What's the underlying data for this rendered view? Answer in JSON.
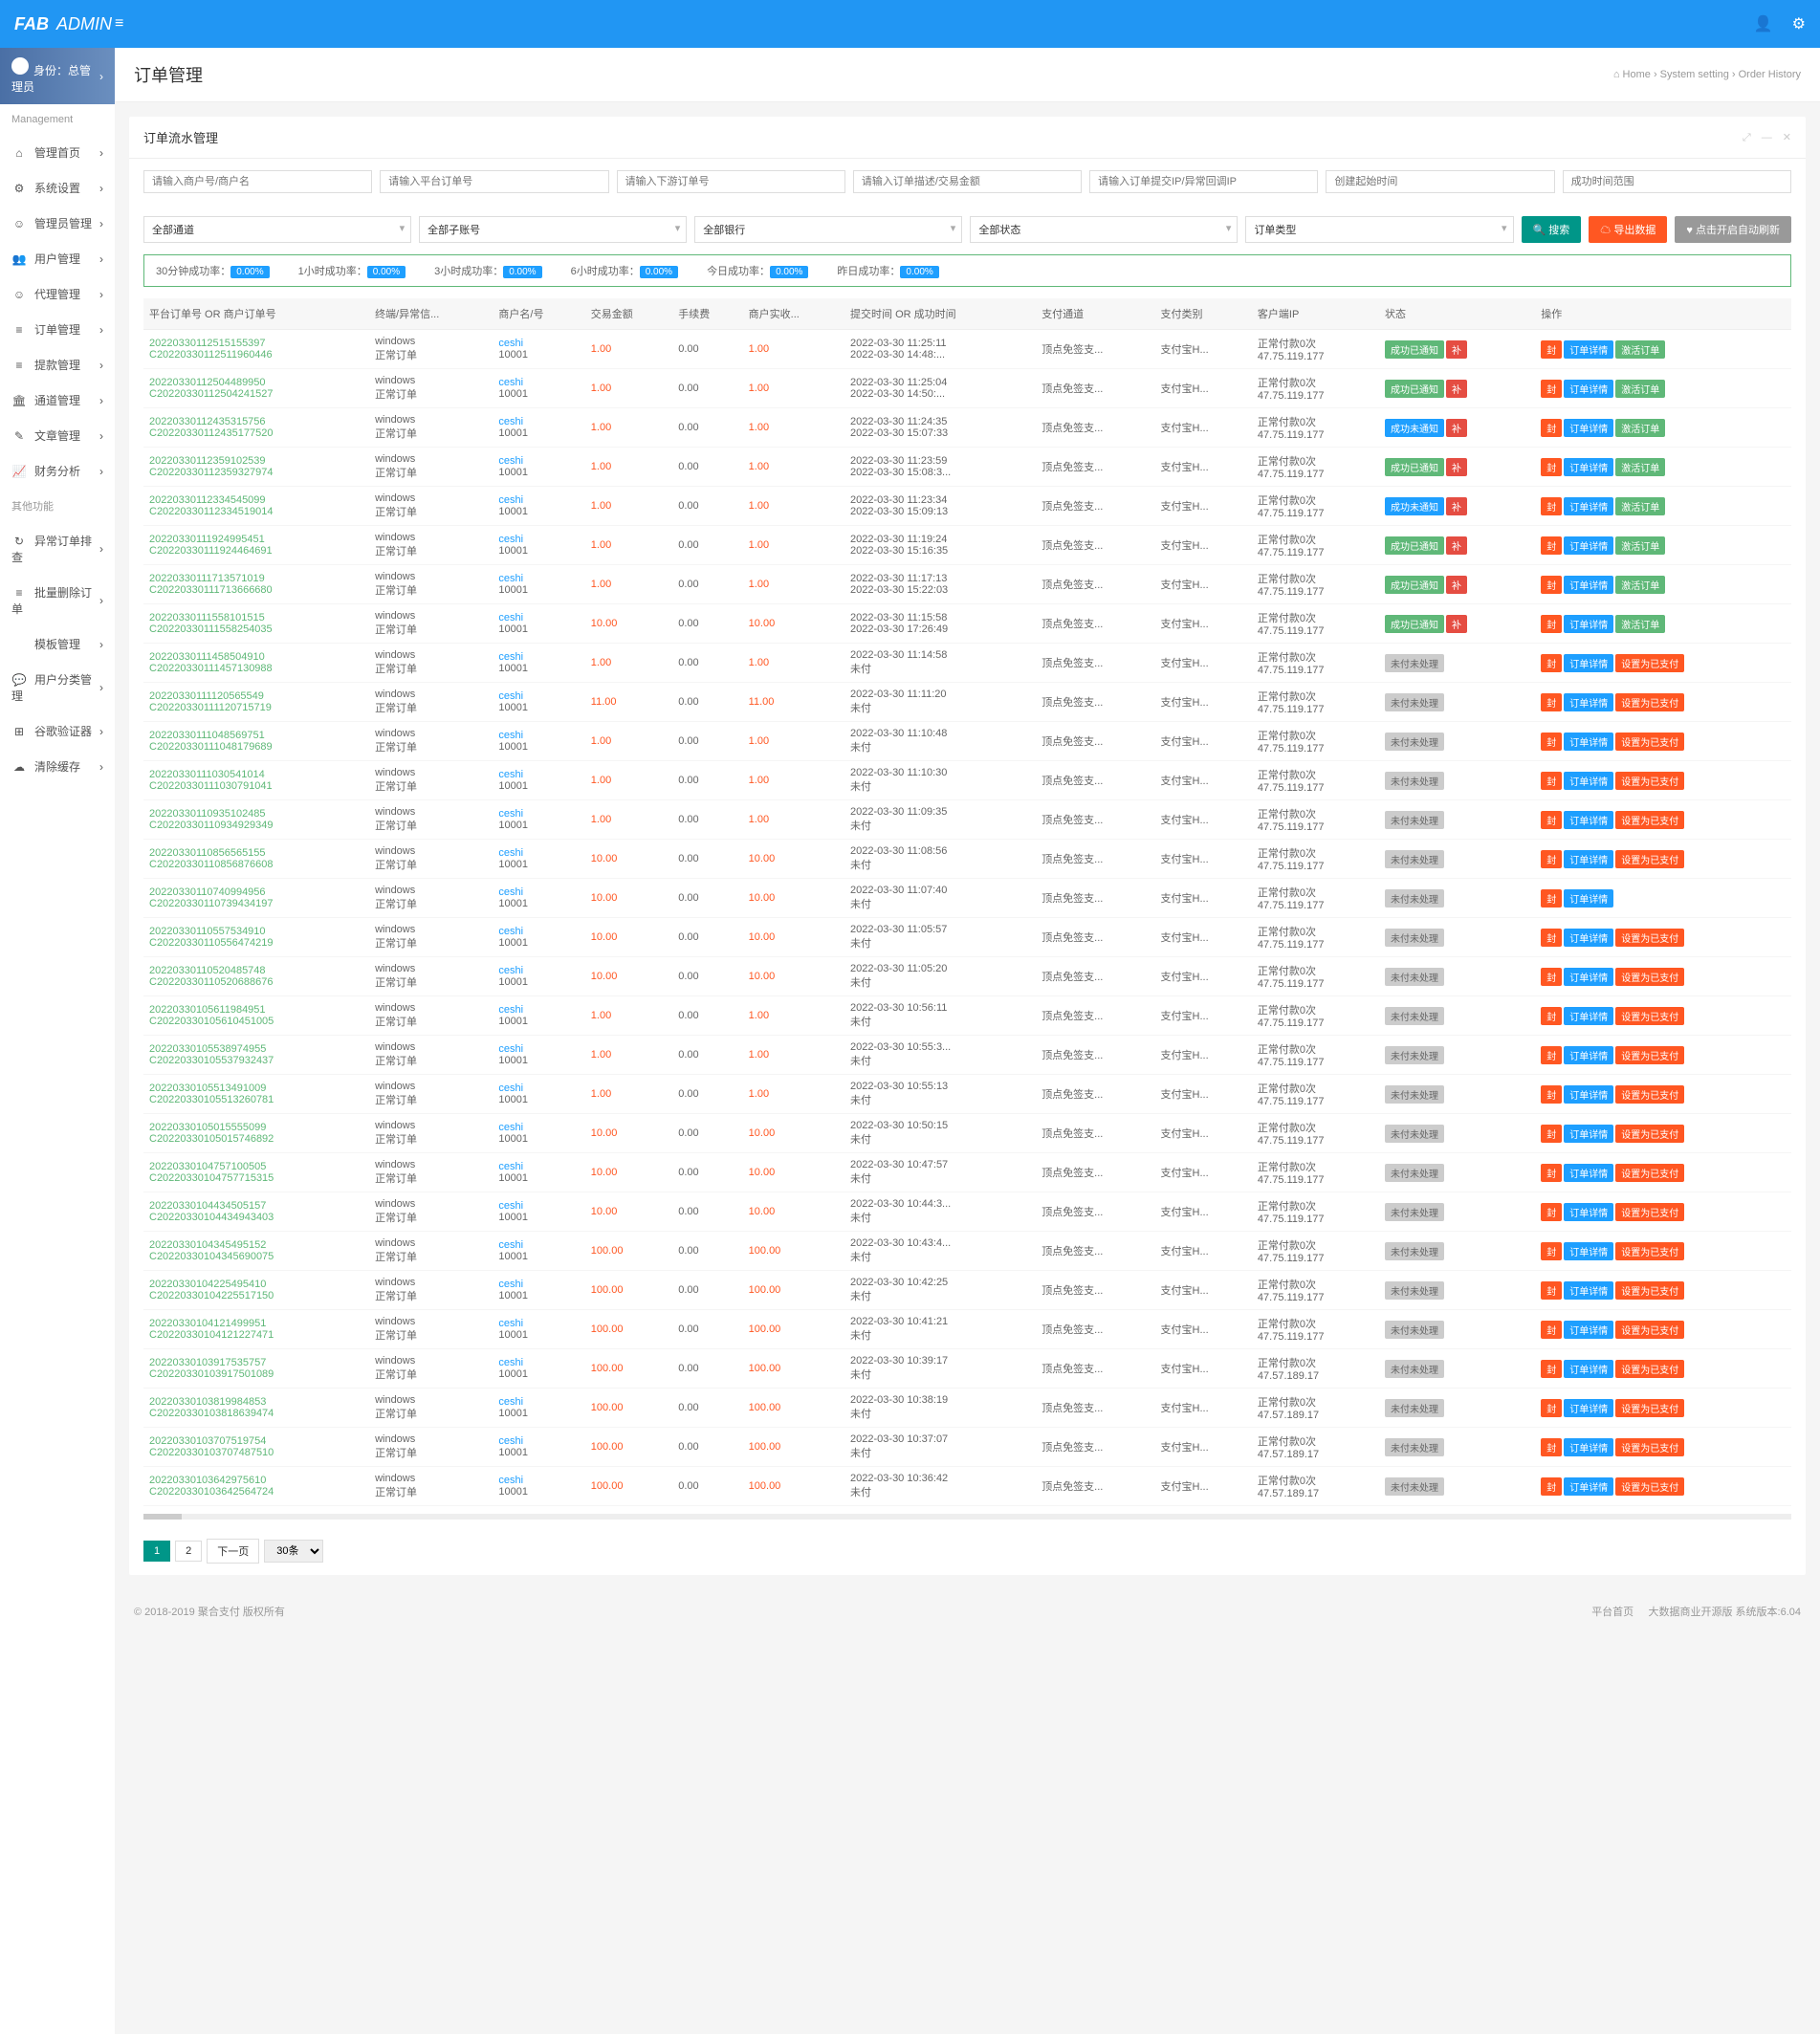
{
  "header": {
    "logo1": "FAB",
    "logo2": "ADMIN"
  },
  "sidebar": {
    "role_prefix": "身份：",
    "role": "总管理员",
    "h1": "Management",
    "h2": "其他功能",
    "m1": [
      {
        "ic": "⌂",
        "t": "管理首页"
      },
      {
        "ic": "⚙",
        "t": "系统设置"
      },
      {
        "ic": "☺",
        "t": "管理员管理"
      },
      {
        "ic": "👥",
        "t": "用户管理"
      },
      {
        "ic": "☺",
        "t": "代理管理"
      },
      {
        "ic": "≡",
        "t": "订单管理"
      },
      {
        "ic": "≡",
        "t": "提款管理"
      },
      {
        "ic": "🏛",
        "t": "通道管理"
      },
      {
        "ic": "✎",
        "t": "文章管理"
      },
      {
        "ic": "📈",
        "t": "财务分析"
      }
    ],
    "m2": [
      {
        "ic": "↻",
        "t": "异常订单排查"
      },
      {
        "ic": "≡",
        "t": "批量删除订单"
      },
      {
        "ic": "",
        "t": "模板管理"
      },
      {
        "ic": "💬",
        "t": "用户分类管理"
      },
      {
        "ic": "⊞",
        "t": "谷歌验证器"
      },
      {
        "ic": "☁",
        "t": "清除缓存"
      }
    ]
  },
  "page": {
    "title": "订单管理",
    "crumb_home": "Home",
    "crumb_1": "System setting",
    "crumb_2": "Order History",
    "home_ic": "⌂"
  },
  "panel": {
    "title": "订单流水管理"
  },
  "filters": {
    "ph": [
      "请输入商户号/商户名",
      "请输入平台订单号",
      "请输入下游订单号",
      "请输入订单描述/交易金额",
      "请输入订单提交IP/异常回调IP",
      "创建起始时间",
      "成功时间范围"
    ],
    "sel": [
      "全部通道",
      "全部子账号",
      "全部银行",
      "全部状态",
      "订单类型"
    ],
    "b_search": "搜索",
    "b_export": "导出数据",
    "b_auto": "点击开启自动刷新",
    "ic_s": "🔍",
    "ic_e": "☁",
    "ic_a": "♥"
  },
  "stats": [
    {
      "l": "30分钟成功率：",
      "v": "0.00%"
    },
    {
      "l": "1小时成功率：",
      "v": "0.00%"
    },
    {
      "l": "3小时成功率：",
      "v": "0.00%"
    },
    {
      "l": "6小时成功率：",
      "v": "0.00%"
    },
    {
      "l": "今日成功率：",
      "v": "0.00%"
    },
    {
      "l": "昨日成功率：",
      "v": "0.00%"
    }
  ],
  "cols": [
    "平台订单号 OR 商户订单号",
    "终端/异常信...",
    "商户名/号",
    "交易金额",
    "手续费",
    "商户实收...",
    "提交时间 OR 成功时间",
    "支付通道",
    "支付类别",
    "客户端IP",
    "状态",
    "操作"
  ],
  "merchant": {
    "name": "ceshi",
    "no": "10001"
  },
  "term": {
    "a": "windows",
    "b": "正常订单"
  },
  "ch": "顶点免签支...",
  "pt": "支付宝H...",
  "ip": "47.75.119.177",
  "ip2": "47.57.189.17",
  "pay": {
    "a": "正常付款0次",
    "b": "47.75.119.177",
    "b2": "47.57.189.17"
  },
  "st": {
    "ok": "成功已通知",
    "ok2": "成功未通知",
    "np": "未付未处理"
  },
  "act": {
    "seal": "封",
    "det": "订单详情",
    "act": "激活订单",
    "set": "设置为已支付"
  },
  "rows": [
    {
      "o1": "20220330112515155397",
      "o2": "C20220330112511960446",
      "amt": "1.00",
      "fee": "0.00",
      "recv": "1.00",
      "t1": "2022-03-30 11:25:11",
      "t2": "2022-03-30 14:48:...",
      "s": 1,
      "a": 1
    },
    {
      "o1": "20220330112504489950",
      "o2": "C20220330112504241527",
      "amt": "1.00",
      "fee": "0.00",
      "recv": "1.00",
      "t1": "2022-03-30 11:25:04",
      "t2": "2022-03-30 14:50:...",
      "s": 1,
      "a": 1
    },
    {
      "o1": "20220330112435315756",
      "o2": "C20220330112435177520",
      "amt": "1.00",
      "fee": "0.00",
      "recv": "1.00",
      "t1": "2022-03-30 11:24:35",
      "t2": "2022-03-30 15:07:33",
      "s": 2,
      "a": 1
    },
    {
      "o1": "20220330112359102539",
      "o2": "C20220330112359327974",
      "amt": "1.00",
      "fee": "0.00",
      "recv": "1.00",
      "t1": "2022-03-30 11:23:59",
      "t2": "2022-03-30 15:08:3...",
      "s": 1,
      "a": 1
    },
    {
      "o1": "20220330112334545099",
      "o2": "C20220330112334519014",
      "amt": "1.00",
      "fee": "0.00",
      "recv": "1.00",
      "t1": "2022-03-30 11:23:34",
      "t2": "2022-03-30 15:09:13",
      "s": 2,
      "a": 1
    },
    {
      "o1": "20220330111924995451",
      "o2": "C20220330111924464691",
      "amt": "1.00",
      "fee": "0.00",
      "recv": "1.00",
      "t1": "2022-03-30 11:19:24",
      "t2": "2022-03-30 15:16:35",
      "s": 1,
      "a": 1
    },
    {
      "o1": "20220330111713571019",
      "o2": "C20220330111713666680",
      "amt": "1.00",
      "fee": "0.00",
      "recv": "1.00",
      "t1": "2022-03-30 11:17:13",
      "t2": "2022-03-30 15:22:03",
      "s": 1,
      "a": 1
    },
    {
      "o1": "20220330111558101515",
      "o2": "C20220330111558254035",
      "amt": "10.00",
      "fee": "0.00",
      "recv": "10.00",
      "t1": "2022-03-30 11:15:58",
      "t2": "2022-03-30 17:26:49",
      "s": 1,
      "a": 1
    },
    {
      "o1": "20220330111458504910",
      "o2": "C20220330111457130988",
      "amt": "1.00",
      "fee": "0.00",
      "recv": "1.00",
      "t1": "2022-03-30 11:14:58",
      "t2": "未付",
      "s": 3,
      "a": 2
    },
    {
      "o1": "20220330111120565549",
      "o2": "C20220330111120715719",
      "amt": "11.00",
      "fee": "0.00",
      "recv": "11.00",
      "t1": "2022-03-30 11:11:20",
      "t2": "未付",
      "s": 3,
      "a": 2
    },
    {
      "o1": "20220330111048569751",
      "o2": "C20220330111048179689",
      "amt": "1.00",
      "fee": "0.00",
      "recv": "1.00",
      "t1": "2022-03-30 11:10:48",
      "t2": "未付",
      "s": 3,
      "a": 2
    },
    {
      "o1": "20220330111030541014",
      "o2": "C20220330111030791041",
      "amt": "1.00",
      "fee": "0.00",
      "recv": "1.00",
      "t1": "2022-03-30 11:10:30",
      "t2": "未付",
      "s": 3,
      "a": 2
    },
    {
      "o1": "20220330110935102485",
      "o2": "C20220330110934929349",
      "amt": "1.00",
      "fee": "0.00",
      "recv": "1.00",
      "t1": "2022-03-30 11:09:35",
      "t2": "未付",
      "s": 3,
      "a": 2
    },
    {
      "o1": "20220330110856565155",
      "o2": "C20220330110856876608",
      "amt": "10.00",
      "fee": "0.00",
      "recv": "10.00",
      "t1": "2022-03-30 11:08:56",
      "t2": "未付",
      "s": 3,
      "a": 2
    },
    {
      "o1": "20220330110740994956",
      "o2": "C20220330110739434197",
      "amt": "10.00",
      "fee": "0.00",
      "recv": "10.00",
      "t1": "2022-03-30 11:07:40",
      "t2": "未付",
      "s": 3,
      "a": 3
    },
    {
      "o1": "20220330110557534910",
      "o2": "C20220330110556474219",
      "amt": "10.00",
      "fee": "0.00",
      "recv": "10.00",
      "t1": "2022-03-30 11:05:57",
      "t2": "未付",
      "s": 3,
      "a": 2
    },
    {
      "o1": "20220330110520485748",
      "o2": "C20220330110520688676",
      "amt": "10.00",
      "fee": "0.00",
      "recv": "10.00",
      "t1": "2022-03-30 11:05:20",
      "t2": "未付",
      "s": 3,
      "a": 2
    },
    {
      "o1": "20220330105611984951",
      "o2": "C20220330105610451005",
      "amt": "1.00",
      "fee": "0.00",
      "recv": "1.00",
      "t1": "2022-03-30 10:56:11",
      "t2": "未付",
      "s": 3,
      "a": 2
    },
    {
      "o1": "20220330105538974955",
      "o2": "C20220330105537932437",
      "amt": "1.00",
      "fee": "0.00",
      "recv": "1.00",
      "t1": "2022-03-30 10:55:3...",
      "t2": "未付",
      "s": 3,
      "a": 2
    },
    {
      "o1": "20220330105513491009",
      "o2": "C20220330105513260781",
      "amt": "1.00",
      "fee": "0.00",
      "recv": "1.00",
      "t1": "2022-03-30 10:55:13",
      "t2": "未付",
      "s": 3,
      "a": 2
    },
    {
      "o1": "20220330105015555099",
      "o2": "C20220330105015746892",
      "amt": "10.00",
      "fee": "0.00",
      "recv": "10.00",
      "t1": "2022-03-30 10:50:15",
      "t2": "未付",
      "s": 3,
      "a": 2
    },
    {
      "o1": "20220330104757100505",
      "o2": "C20220330104757715315",
      "amt": "10.00",
      "fee": "0.00",
      "recv": "10.00",
      "t1": "2022-03-30 10:47:57",
      "t2": "未付",
      "s": 3,
      "a": 2
    },
    {
      "o1": "20220330104434505157",
      "o2": "C20220330104434943403",
      "amt": "10.00",
      "fee": "0.00",
      "recv": "10.00",
      "t1": "2022-03-30 10:44:3...",
      "t2": "未付",
      "s": 3,
      "a": 2
    },
    {
      "o1": "20220330104345495152",
      "o2": "C20220330104345690075",
      "amt": "100.00",
      "fee": "0.00",
      "recv": "100.00",
      "t1": "2022-03-30 10:43:4...",
      "t2": "未付",
      "s": 3,
      "a": 2
    },
    {
      "o1": "20220330104225495410",
      "o2": "C20220330104225517150",
      "amt": "100.00",
      "fee": "0.00",
      "recv": "100.00",
      "t1": "2022-03-30 10:42:25",
      "t2": "未付",
      "s": 3,
      "a": 2
    },
    {
      "o1": "20220330104121499951",
      "o2": "C20220330104121227471",
      "amt": "100.00",
      "fee": "0.00",
      "recv": "100.00",
      "t1": "2022-03-30 10:41:21",
      "t2": "未付",
      "s": 3,
      "a": 2
    },
    {
      "o1": "20220330103917535757",
      "o2": "C20220330103917501089",
      "amt": "100.00",
      "fee": "0.00",
      "recv": "100.00",
      "t1": "2022-03-30 10:39:17",
      "t2": "未付",
      "s": 3,
      "a": 2,
      "ip": 2
    },
    {
      "o1": "20220330103819984853",
      "o2": "C20220330103818639474",
      "amt": "100.00",
      "fee": "0.00",
      "recv": "100.00",
      "t1": "2022-03-30 10:38:19",
      "t2": "未付",
      "s": 3,
      "a": 2,
      "ip": 2
    },
    {
      "o1": "20220330103707519754",
      "o2": "C20220330103707487510",
      "amt": "100.00",
      "fee": "0.00",
      "recv": "100.00",
      "t1": "2022-03-30 10:37:07",
      "t2": "未付",
      "s": 3,
      "a": 2,
      "ip": 2
    },
    {
      "o1": "20220330103642975610",
      "o2": "C20220330103642564724",
      "amt": "100.00",
      "fee": "0.00",
      "recv": "100.00",
      "t1": "2022-03-30 10:36:42",
      "t2": "未付",
      "s": 3,
      "a": 2,
      "ip": 2
    }
  ],
  "pager": {
    "p1": "1",
    "p2": "2",
    "next": "下一页",
    "per": "30条"
  },
  "footer": {
    "l": "© 2018-2019 聚合支付 版权所有",
    "r1": "平台首页",
    "r2": "大数据商业开源版 系统版本:6.04"
  }
}
